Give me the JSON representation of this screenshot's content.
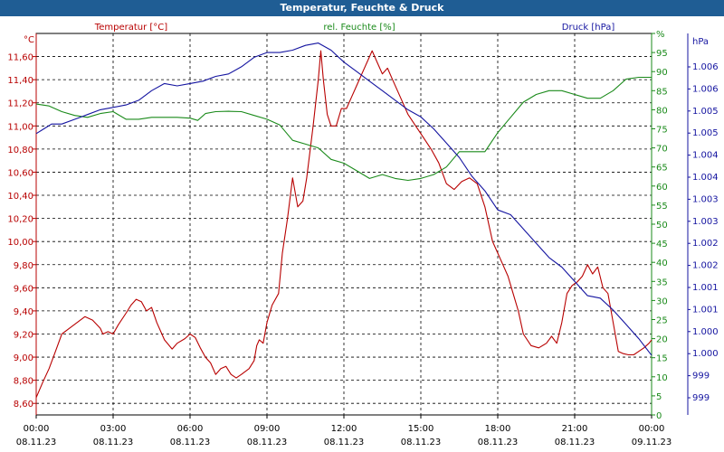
{
  "window": {
    "title": "Temperatur, Feuchte & Druck"
  },
  "colors": {
    "temperature": "#b80000",
    "humidity": "#1a8a1a",
    "pressure": "#1414a0",
    "grid": "#000000",
    "title_bg": "#1f5d94"
  },
  "chart_data": {
    "type": "line",
    "title": "Temperatur, Feuchte & Druck",
    "grid": true,
    "legend": "top",
    "x_ticks": [
      {
        "time": "00:00",
        "date": "08.11.23"
      },
      {
        "time": "03:00",
        "date": "08.11.23"
      },
      {
        "time": "06:00",
        "date": "08.11.23"
      },
      {
        "time": "09:00",
        "date": "08.11.23"
      },
      {
        "time": "12:00",
        "date": "08.11.23"
      },
      {
        "time": "15:00",
        "date": "08.11.23"
      },
      {
        "time": "18:00",
        "date": "08.11.23"
      },
      {
        "time": "21:00",
        "date": "08.11.23"
      },
      {
        "time": "00:00",
        "date": "09.11.23"
      }
    ],
    "x_range_hours": [
      0,
      24
    ],
    "axes": {
      "temperature": {
        "label": "Temperatur [°C]",
        "unit": "°C",
        "ylim": [
          8.5,
          11.8
        ],
        "ticks": [
          "8,60",
          "8,80",
          "9,00",
          "9,20",
          "9,40",
          "9,60",
          "9,80",
          "10,00",
          "10,20",
          "10,40",
          "10,60",
          "10,80",
          "11,00",
          "11,20",
          "11,40",
          "11,60"
        ],
        "tick_values": [
          8.6,
          8.8,
          9.0,
          9.2,
          9.4,
          9.6,
          9.8,
          10.0,
          10.2,
          10.4,
          10.6,
          10.8,
          11.0,
          11.2,
          11.4,
          11.6
        ]
      },
      "humidity": {
        "label": "rel. Feuchte [%]",
        "unit": "%",
        "ylim": [
          0,
          100
        ],
        "ticks": [
          "0",
          "5",
          "10",
          "15",
          "20",
          "25",
          "30",
          "35",
          "40",
          "45",
          "50",
          "55",
          "60",
          "65",
          "70",
          "75",
          "80",
          "85",
          "90",
          "95",
          "%"
        ],
        "tick_values": [
          0,
          5,
          10,
          15,
          20,
          25,
          30,
          35,
          40,
          45,
          50,
          55,
          60,
          65,
          70,
          75,
          80,
          85,
          90,
          95,
          100
        ]
      },
      "pressure": {
        "label": "Druck [hPa]",
        "unit": "hPa",
        "ylim": [
          998.7,
          1006.7
        ],
        "ticks": [
          "999",
          "999",
          "1.000",
          "1.000",
          "1.001",
          "1.001",
          "1.002",
          "1.002",
          "1.003",
          "1.003",
          "1.004",
          "1.004",
          "1.005",
          "1.005",
          "1.006",
          "1.006"
        ]
      }
    },
    "series": [
      {
        "name": "Temperatur [°C]",
        "axis": "temperature",
        "points": [
          [
            0,
            8.65
          ],
          [
            0.25,
            8.78
          ],
          [
            0.5,
            8.9
          ],
          [
            0.75,
            9.05
          ],
          [
            1.0,
            9.2
          ],
          [
            1.3,
            9.25
          ],
          [
            1.6,
            9.3
          ],
          [
            1.9,
            9.35
          ],
          [
            2.2,
            9.32
          ],
          [
            2.5,
            9.25
          ],
          [
            2.6,
            9.2
          ],
          [
            2.8,
            9.22
          ],
          [
            3.0,
            9.2
          ],
          [
            3.2,
            9.28
          ],
          [
            3.5,
            9.38
          ],
          [
            3.7,
            9.45
          ],
          [
            3.9,
            9.5
          ],
          [
            4.1,
            9.48
          ],
          [
            4.3,
            9.4
          ],
          [
            4.5,
            9.43
          ],
          [
            4.7,
            9.3
          ],
          [
            5.0,
            9.15
          ],
          [
            5.3,
            9.07
          ],
          [
            5.5,
            9.12
          ],
          [
            5.8,
            9.16
          ],
          [
            6.0,
            9.2
          ],
          [
            6.2,
            9.17
          ],
          [
            6.4,
            9.08
          ],
          [
            6.6,
            9.0
          ],
          [
            6.8,
            8.95
          ],
          [
            7.0,
            8.85
          ],
          [
            7.2,
            8.9
          ],
          [
            7.4,
            8.92
          ],
          [
            7.6,
            8.85
          ],
          [
            7.8,
            8.82
          ],
          [
            8.0,
            8.85
          ],
          [
            8.3,
            8.9
          ],
          [
            8.5,
            8.97
          ],
          [
            8.6,
            9.1
          ],
          [
            8.7,
            9.15
          ],
          [
            8.85,
            9.12
          ],
          [
            9.0,
            9.3
          ],
          [
            9.2,
            9.45
          ],
          [
            9.45,
            9.55
          ],
          [
            9.6,
            9.9
          ],
          [
            9.8,
            10.2
          ],
          [
            10.0,
            10.55
          ],
          [
            10.2,
            10.3
          ],
          [
            10.4,
            10.35
          ],
          [
            10.55,
            10.55
          ],
          [
            10.8,
            11.0
          ],
          [
            11.0,
            11.4
          ],
          [
            11.1,
            11.65
          ],
          [
            11.2,
            11.4
          ],
          [
            11.35,
            11.1
          ],
          [
            11.5,
            11.0
          ],
          [
            11.7,
            11.0
          ],
          [
            11.9,
            11.15
          ],
          [
            12.1,
            11.15
          ],
          [
            12.3,
            11.25
          ],
          [
            12.5,
            11.35
          ],
          [
            12.7,
            11.45
          ],
          [
            12.9,
            11.55
          ],
          [
            13.1,
            11.65
          ],
          [
            13.3,
            11.55
          ],
          [
            13.5,
            11.45
          ],
          [
            13.7,
            11.5
          ],
          [
            13.9,
            11.4
          ],
          [
            14.2,
            11.25
          ],
          [
            14.5,
            11.1
          ],
          [
            14.8,
            11.0
          ],
          [
            15.1,
            10.9
          ],
          [
            15.4,
            10.8
          ],
          [
            15.7,
            10.68
          ],
          [
            16.0,
            10.5
          ],
          [
            16.3,
            10.45
          ],
          [
            16.6,
            10.52
          ],
          [
            16.9,
            10.55
          ],
          [
            17.2,
            10.5
          ],
          [
            17.5,
            10.3
          ],
          [
            17.8,
            10.0
          ],
          [
            18.0,
            9.9
          ],
          [
            18.2,
            9.8
          ],
          [
            18.4,
            9.7
          ],
          [
            18.6,
            9.55
          ],
          [
            18.8,
            9.4
          ],
          [
            19.0,
            9.2
          ],
          [
            19.3,
            9.1
          ],
          [
            19.6,
            9.08
          ],
          [
            19.9,
            9.12
          ],
          [
            20.1,
            9.18
          ],
          [
            20.3,
            9.12
          ],
          [
            20.5,
            9.3
          ],
          [
            20.7,
            9.55
          ],
          [
            20.9,
            9.62
          ],
          [
            21.1,
            9.65
          ],
          [
            21.3,
            9.7
          ],
          [
            21.5,
            9.8
          ],
          [
            21.7,
            9.72
          ],
          [
            21.9,
            9.78
          ],
          [
            22.1,
            9.6
          ],
          [
            22.3,
            9.55
          ],
          [
            22.5,
            9.3
          ],
          [
            22.7,
            9.05
          ],
          [
            22.9,
            9.03
          ],
          [
            23.1,
            9.02
          ],
          [
            23.3,
            9.02
          ],
          [
            23.5,
            9.05
          ],
          [
            23.7,
            9.08
          ],
          [
            23.9,
            9.12
          ],
          [
            24.0,
            9.15
          ]
        ]
      },
      {
        "name": "rel. Feuchte [%]",
        "axis": "humidity",
        "points": [
          [
            0,
            81.5
          ],
          [
            0.5,
            81
          ],
          [
            1.0,
            79.5
          ],
          [
            1.5,
            78.5
          ],
          [
            2.0,
            78
          ],
          [
            2.5,
            79
          ],
          [
            3.0,
            79.5
          ],
          [
            3.5,
            77.5
          ],
          [
            4.0,
            77.5
          ],
          [
            4.5,
            78
          ],
          [
            5.0,
            78
          ],
          [
            5.5,
            78
          ],
          [
            6.0,
            77.8
          ],
          [
            6.3,
            77.2
          ],
          [
            6.6,
            79
          ],
          [
            7.0,
            79.5
          ],
          [
            7.5,
            79.6
          ],
          [
            8.0,
            79.5
          ],
          [
            8.5,
            78.5
          ],
          [
            9.0,
            77.5
          ],
          [
            9.5,
            76
          ],
          [
            10.0,
            72
          ],
          [
            10.5,
            71
          ],
          [
            11.0,
            70
          ],
          [
            11.5,
            67
          ],
          [
            12.0,
            66
          ],
          [
            12.5,
            64
          ],
          [
            13.0,
            62
          ],
          [
            13.5,
            63
          ],
          [
            14.0,
            62
          ],
          [
            14.5,
            61.5
          ],
          [
            15.0,
            62
          ],
          [
            15.5,
            63
          ],
          [
            16.0,
            65
          ],
          [
            16.5,
            69
          ],
          [
            17.0,
            69
          ],
          [
            17.5,
            69
          ],
          [
            18.0,
            74
          ],
          [
            18.5,
            78
          ],
          [
            19.0,
            82
          ],
          [
            19.5,
            84
          ],
          [
            20.0,
            85
          ],
          [
            20.5,
            85
          ],
          [
            21.0,
            84
          ],
          [
            21.5,
            83
          ],
          [
            22.0,
            83
          ],
          [
            22.5,
            85
          ],
          [
            23.0,
            88
          ],
          [
            23.5,
            88.5
          ],
          [
            24.0,
            88.5
          ]
        ]
      },
      {
        "name": "Druck [hPa]",
        "axis": "pressure",
        "points": [
          [
            0,
            1004.6
          ],
          [
            0.3,
            1004.7
          ],
          [
            0.6,
            1004.8
          ],
          [
            1.0,
            1004.8
          ],
          [
            1.5,
            1004.9
          ],
          [
            2.0,
            1005.0
          ],
          [
            2.5,
            1005.1
          ],
          [
            3.0,
            1005.15
          ],
          [
            3.5,
            1005.2
          ],
          [
            4.0,
            1005.3
          ],
          [
            4.5,
            1005.5
          ],
          [
            5.0,
            1005.65
          ],
          [
            5.5,
            1005.6
          ],
          [
            6.0,
            1005.65
          ],
          [
            6.5,
            1005.7
          ],
          [
            7.0,
            1005.8
          ],
          [
            7.5,
            1005.85
          ],
          [
            8.0,
            1006.0
          ],
          [
            8.5,
            1006.2
          ],
          [
            9.0,
            1006.3
          ],
          [
            9.5,
            1006.3
          ],
          [
            10.0,
            1006.35
          ],
          [
            10.5,
            1006.45
          ],
          [
            11.0,
            1006.5
          ],
          [
            11.5,
            1006.35
          ],
          [
            12.0,
            1006.1
          ],
          [
            12.5,
            1005.9
          ],
          [
            13.0,
            1005.7
          ],
          [
            13.5,
            1005.5
          ],
          [
            14.0,
            1005.3
          ],
          [
            14.5,
            1005.1
          ],
          [
            15.0,
            1004.95
          ],
          [
            15.5,
            1004.7
          ],
          [
            16.0,
            1004.4
          ],
          [
            16.5,
            1004.1
          ],
          [
            17.0,
            1003.7
          ],
          [
            17.5,
            1003.4
          ],
          [
            18.0,
            1003.0
          ],
          [
            18.5,
            1002.9
          ],
          [
            19.0,
            1002.6
          ],
          [
            19.5,
            1002.3
          ],
          [
            20.0,
            1002.0
          ],
          [
            20.5,
            1001.8
          ],
          [
            21.0,
            1001.5
          ],
          [
            21.5,
            1001.2
          ],
          [
            22.0,
            1001.15
          ],
          [
            22.5,
            1000.9
          ],
          [
            23.0,
            1000.6
          ],
          [
            23.5,
            1000.3
          ],
          [
            24.0,
            999.95
          ]
        ]
      }
    ]
  }
}
